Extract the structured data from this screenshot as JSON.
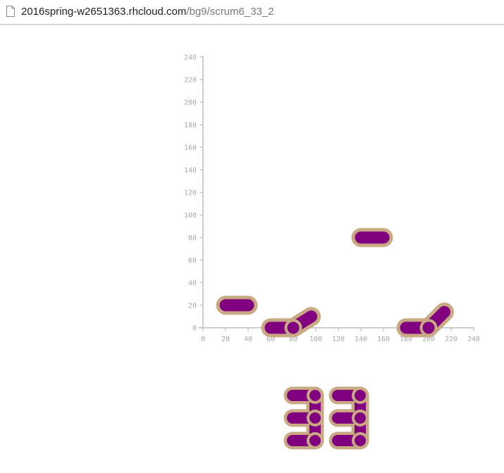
{
  "browser": {
    "url_host": "2016spring-w2651363.rhcloud.com",
    "url_path": "/bg9/scrum6_33_2",
    "page_icon": "page-icon"
  },
  "colors": {
    "axis": "#bdbdbd",
    "tick_text": "#a7a7a7",
    "piece_fill": "#800080",
    "piece_outline": "#c9a984"
  },
  "chart_data": {
    "type": "scatter",
    "title": "",
    "xlabel": "",
    "ylabel": "",
    "xlim": [
      0,
      240
    ],
    "ylim": [
      0,
      240
    ],
    "xticks": [
      0,
      20,
      40,
      60,
      80,
      100,
      120,
      140,
      160,
      180,
      200,
      220,
      240
    ],
    "yticks": [
      0,
      20,
      40,
      60,
      80,
      100,
      120,
      140,
      160,
      180,
      200,
      220,
      240
    ],
    "grid": false,
    "links": [
      {
        "x1": 20,
        "y1": 20,
        "x2": 40,
        "y2": 20
      },
      {
        "x1": 60,
        "y1": 0,
        "x2": 80,
        "y2": 0
      },
      {
        "x1": 80,
        "y1": 0,
        "x2": 96,
        "y2": 10
      },
      {
        "x1": 140,
        "y1": 80,
        "x2": 160,
        "y2": 80
      },
      {
        "x1": 180,
        "y1": 0,
        "x2": 200,
        "y2": 0
      },
      {
        "x1": 200,
        "y1": 0,
        "x2": 214,
        "y2": 14
      }
    ],
    "joints": [
      {
        "x": 80,
        "y": 0
      },
      {
        "x": 200,
        "y": 0
      }
    ]
  },
  "digits": {
    "value": "33",
    "glyphs": [
      "3",
      "3"
    ]
  }
}
